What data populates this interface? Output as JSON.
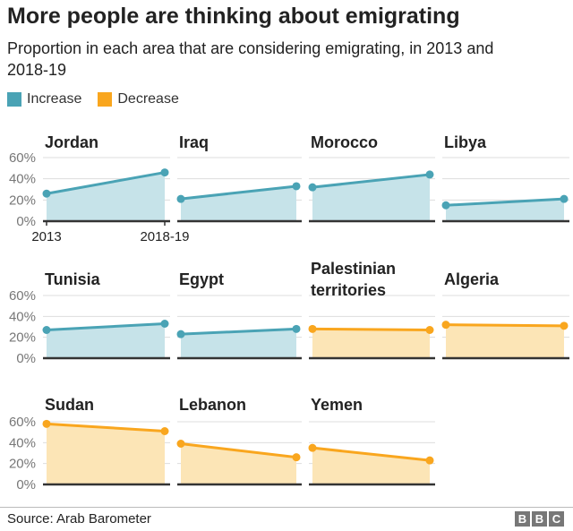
{
  "title": "More people are thinking about emigrating",
  "subtitle": "Proportion in each area that are considering emigrating, in 2013 and 2018-19",
  "legend": [
    {
      "label": "Increase",
      "color": "#4aa3b5"
    },
    {
      "label": "Decrease",
      "color": "#f9a61e"
    }
  ],
  "source": "Source: Arab Barometer",
  "logo": [
    "B",
    "B",
    "C"
  ],
  "chart_data": {
    "type": "area",
    "x": [
      "2013",
      "2018-19"
    ],
    "ylim": [
      0,
      60
    ],
    "yticks": [
      "0%",
      "20%",
      "40%",
      "60%"
    ],
    "grid": true,
    "panels": [
      {
        "name": "Jordan",
        "values": [
          26,
          46
        ],
        "trend": "Increase"
      },
      {
        "name": "Iraq",
        "values": [
          21,
          33
        ],
        "trend": "Increase"
      },
      {
        "name": "Morocco",
        "values": [
          32,
          44
        ],
        "trend": "Increase"
      },
      {
        "name": "Libya",
        "values": [
          15,
          21
        ],
        "trend": "Increase"
      },
      {
        "name": "Tunisia",
        "values": [
          27,
          33
        ],
        "trend": "Increase"
      },
      {
        "name": "Egypt",
        "values": [
          23,
          28
        ],
        "trend": "Increase"
      },
      {
        "name": "Palestinian territories",
        "values": [
          28,
          27
        ],
        "trend": "Decrease"
      },
      {
        "name": "Algeria",
        "values": [
          32,
          31
        ],
        "trend": "Decrease"
      },
      {
        "name": "Sudan",
        "values": [
          58,
          51
        ],
        "trend": "Decrease"
      },
      {
        "name": "Lebanon",
        "values": [
          39,
          26
        ],
        "trend": "Decrease"
      },
      {
        "name": "Yemen",
        "values": [
          35,
          23
        ],
        "trend": "Decrease"
      }
    ]
  }
}
